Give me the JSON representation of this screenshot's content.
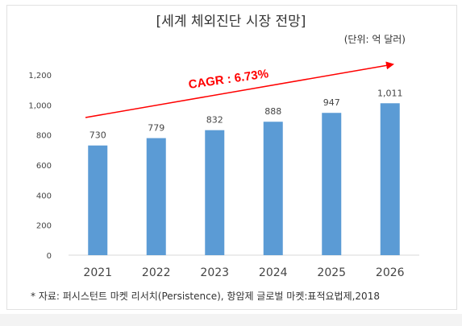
{
  "chart_data": {
    "type": "bar",
    "title": "[세계 체외진단 시장 전망]",
    "unit": "(단위: 억 달러)",
    "categories": [
      "2021",
      "2022",
      "2023",
      "2024",
      "2025",
      "2026"
    ],
    "values": [
      730,
      779,
      832,
      888,
      947,
      1011
    ],
    "data_labels": [
      "730",
      "779",
      "832",
      "888",
      "947",
      "1,011"
    ],
    "ylim": [
      0,
      1200
    ],
    "yticks": [
      0,
      200,
      400,
      600,
      800,
      1000,
      1200
    ],
    "ytick_labels": [
      "0",
      "200",
      "400",
      "600",
      "800",
      "1,000",
      "1,200"
    ],
    "grid": false,
    "bar_color": "#5b9bd5",
    "annotation": {
      "text": "CAGR : 6.73%",
      "color": "#ff0000"
    },
    "source": "* 자료: 퍼시스턴트 마켓 리서치(Persistence), 항암제 글로벌 마켓:표적요법제,2018"
  }
}
